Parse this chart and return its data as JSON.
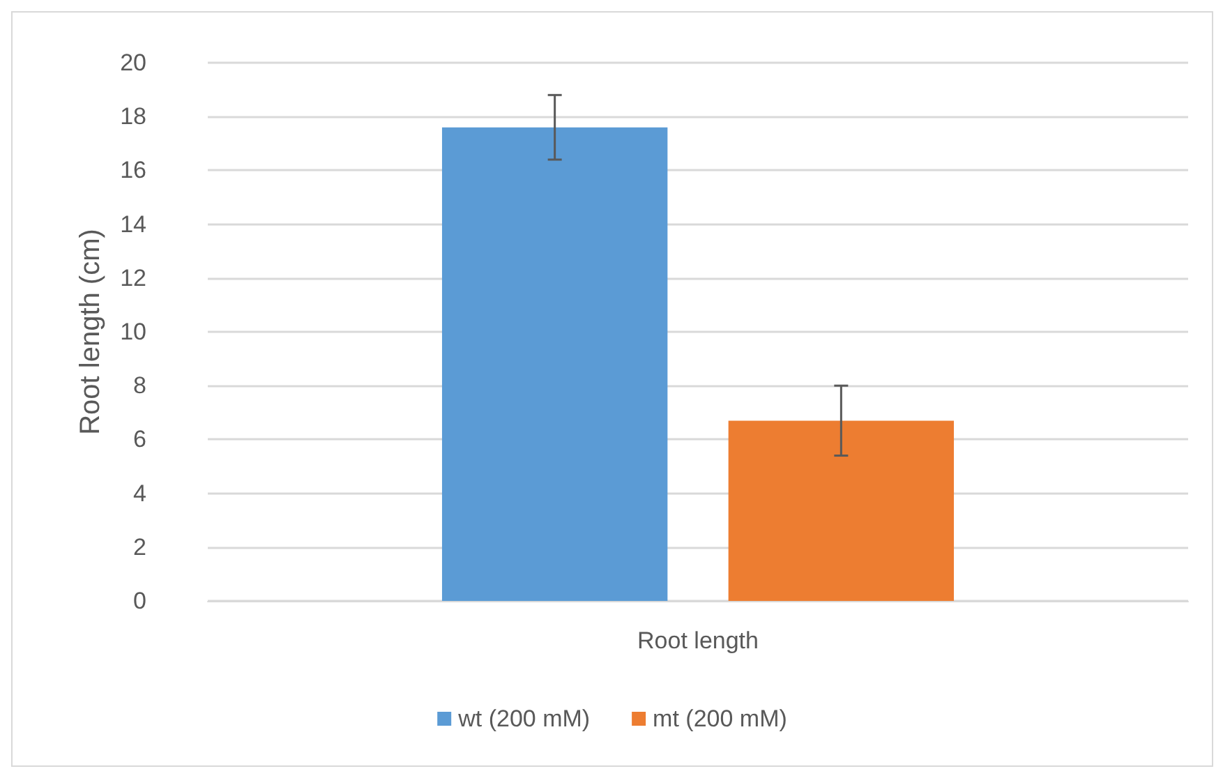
{
  "chart_data": {
    "type": "bar",
    "ylabel": "Root length (cm)",
    "categories": [
      "Root length"
    ],
    "series": [
      {
        "name": "wt (200 mM)",
        "color": "#5b9bd5",
        "values": [
          17.6
        ],
        "errors": [
          1.2
        ]
      },
      {
        "name": "mt (200 mM)",
        "color": "#ed7d31",
        "values": [
          6.7
        ],
        "errors": [
          1.3
        ]
      }
    ],
    "ylim": [
      0,
      20
    ],
    "yticks": [
      0,
      2,
      4,
      6,
      8,
      10,
      12,
      14,
      16,
      18,
      20
    ],
    "grid": "y",
    "legend": "bottom"
  }
}
